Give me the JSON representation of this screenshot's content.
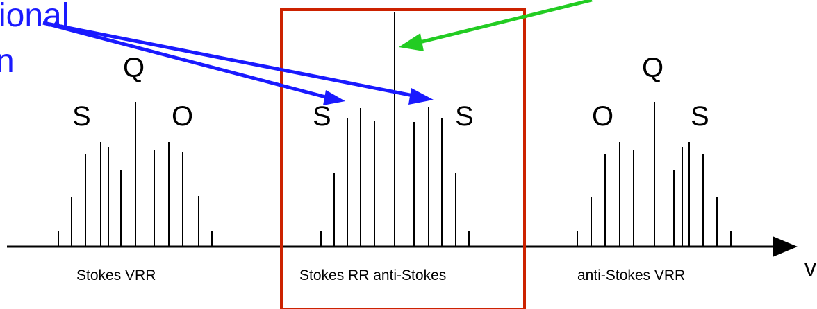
{
  "top_left_fragment_1": "ional",
  "top_left_fragment_2": "n",
  "axis_label": "v",
  "branch_symbols": {
    "s": "S",
    "q": "Q",
    "o": "O"
  },
  "sections": {
    "stokes_vrr": "Stokes VRR",
    "rotational_raman": "Stokes RR anti-Stokes",
    "anti_stokes_vrr": "anti-Stokes VRR"
  },
  "colors": {
    "highlight_box": "#cc2200",
    "blue_arrows": "#1a1aff",
    "green_arrow": "#22cc22",
    "lines": "#000000"
  }
}
